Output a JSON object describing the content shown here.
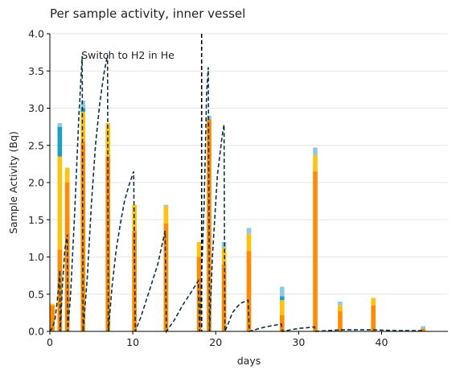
{
  "chart_data": {
    "type": "bar",
    "title": "Per sample activity, inner vessel",
    "xlabel": "days",
    "ylabel": "Sample Activity (Bq)",
    "xlim": [
      0,
      48
    ],
    "ylim": [
      0,
      4.0
    ],
    "x_ticks": [
      0,
      10,
      20,
      30,
      40
    ],
    "y_ticks": [
      0.0,
      0.5,
      1.0,
      1.5,
      2.0,
      2.5,
      3.0,
      3.5,
      4.0
    ],
    "x_tick_labels": [
      "0",
      "10",
      "20",
      "30",
      "40"
    ],
    "y_tick_labels": [
      "0.0",
      "0.5",
      "1.0",
      "1.5",
      "2.0",
      "2.5",
      "3.0",
      "3.5",
      "4.0"
    ],
    "grid": "horizontal",
    "annotation": {
      "text": "Switch to H2 in He",
      "x": 3.8,
      "y": 3.72
    },
    "vline": {
      "x": 18.3,
      "style": "dashed",
      "color": "#000000"
    },
    "stack_colors": [
      "#ff8c00",
      "#ffc20e",
      "#1f9fbf",
      "#8ec9e8"
    ],
    "bars": [
      {
        "x": 0.3,
        "segments": [
          0.35,
          0.02,
          0.0,
          0.0
        ]
      },
      {
        "x": 1.2,
        "segments": [
          1.1,
          1.25,
          0.4,
          0.05
        ]
      },
      {
        "x": 2.1,
        "segments": [
          2.0,
          0.2,
          0.0,
          0.0
        ]
      },
      {
        "x": 4.0,
        "segments": [
          2.55,
          0.4,
          0.05,
          0.1
        ]
      },
      {
        "x": 7.0,
        "segments": [
          2.35,
          0.45,
          0.0,
          0.0
        ]
      },
      {
        "x": 10.2,
        "segments": [
          1.35,
          0.35,
          0.0,
          0.0
        ]
      },
      {
        "x": 14.0,
        "segments": [
          1.45,
          0.23,
          0.0,
          0.02
        ]
      },
      {
        "x": 18.0,
        "segments": [
          1.0,
          0.2,
          0.0,
          0.0
        ]
      },
      {
        "x": 19.2,
        "segments": [
          2.85,
          0.0,
          0.0,
          0.05
        ]
      },
      {
        "x": 21.0,
        "segments": [
          0.9,
          0.22,
          0.0,
          0.08
        ]
      },
      {
        "x": 24.0,
        "segments": [
          1.08,
          0.23,
          0.0,
          0.08
        ]
      },
      {
        "x": 28.0,
        "segments": [
          0.22,
          0.2,
          0.05,
          0.13
        ]
      },
      {
        "x": 32.0,
        "segments": [
          2.15,
          0.22,
          0.0,
          0.1
        ]
      },
      {
        "x": 35.0,
        "segments": [
          0.27,
          0.08,
          0.0,
          0.05
        ]
      },
      {
        "x": 39.0,
        "segments": [
          0.35,
          0.1,
          0.0,
          0.0
        ]
      },
      {
        "x": 45.0,
        "segments": [
          0.04,
          0.0,
          0.0,
          0.03
        ]
      }
    ],
    "model_curve": {
      "color": "#0d3346",
      "style": "dashed",
      "points": [
        [
          0.0,
          0.0
        ],
        [
          0.3,
          0.05
        ],
        [
          0.6,
          0.15
        ],
        [
          0.9,
          0.42
        ],
        [
          1.2,
          0.82
        ],
        [
          1.25,
          0.0
        ],
        [
          1.5,
          0.6
        ],
        [
          1.8,
          1.1
        ],
        [
          2.1,
          1.3
        ],
        [
          2.15,
          0.0
        ],
        [
          2.5,
          0.5
        ],
        [
          3.0,
          1.6
        ],
        [
          3.5,
          2.9
        ],
        [
          3.9,
          3.7
        ],
        [
          4.0,
          0.0
        ],
        [
          4.5,
          0.7
        ],
        [
          5.0,
          1.7
        ],
        [
          5.5,
          2.5
        ],
        [
          6.0,
          3.05
        ],
        [
          6.5,
          3.45
        ],
        [
          6.95,
          3.72
        ],
        [
          7.05,
          0.0
        ],
        [
          7.5,
          0.6
        ],
        [
          8.0,
          1.1
        ],
        [
          8.5,
          1.45
        ],
        [
          9.0,
          1.75
        ],
        [
          9.5,
          1.95
        ],
        [
          10.1,
          2.15
        ],
        [
          10.3,
          0.0
        ],
        [
          11.0,
          0.2
        ],
        [
          12.0,
          0.55
        ],
        [
          13.0,
          0.9
        ],
        [
          13.9,
          1.35
        ],
        [
          14.05,
          0.0
        ],
        [
          15.0,
          0.15
        ],
        [
          16.0,
          0.35
        ],
        [
          17.0,
          0.52
        ],
        [
          17.9,
          0.68
        ],
        [
          18.05,
          0.0
        ],
        [
          18.6,
          1.7
        ],
        [
          18.9,
          3.2
        ],
        [
          19.1,
          3.55
        ],
        [
          19.25,
          0.0
        ],
        [
          19.6,
          1.0
        ],
        [
          20.2,
          2.1
        ],
        [
          20.8,
          2.65
        ],
        [
          21.0,
          2.78
        ],
        [
          21.1,
          0.0
        ],
        [
          21.5,
          0.1
        ],
        [
          22.0,
          0.25
        ],
        [
          22.5,
          0.32
        ],
        [
          23.0,
          0.38
        ],
        [
          23.5,
          0.4
        ],
        [
          23.9,
          0.42
        ],
        [
          24.05,
          0.0
        ],
        [
          25.0,
          0.03
        ],
        [
          26.0,
          0.06
        ],
        [
          27.0,
          0.08
        ],
        [
          27.9,
          0.1
        ],
        [
          28.05,
          0.0
        ],
        [
          29.0,
          0.02
        ],
        [
          30.0,
          0.04
        ],
        [
          31.0,
          0.05
        ],
        [
          31.9,
          0.06
        ],
        [
          32.05,
          0.0
        ],
        [
          35.0,
          0.02
        ],
        [
          39.0,
          0.02
        ],
        [
          42.0,
          0.01
        ],
        [
          44.9,
          0.01
        ],
        [
          45.05,
          0.0
        ]
      ]
    }
  }
}
